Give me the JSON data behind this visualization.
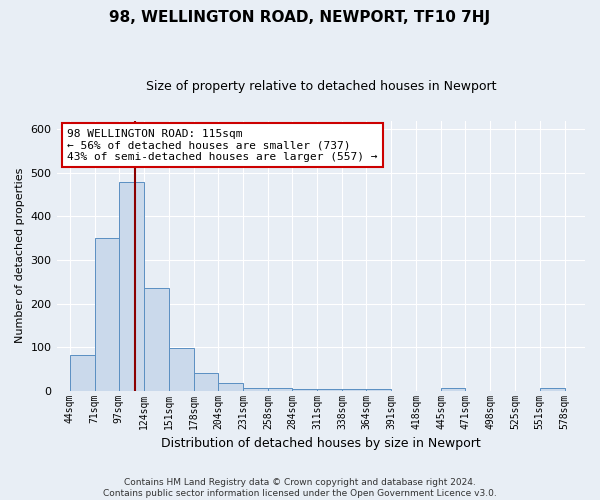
{
  "title": "98, WELLINGTON ROAD, NEWPORT, TF10 7HJ",
  "subtitle": "Size of property relative to detached houses in Newport",
  "xlabel": "Distribution of detached houses by size in Newport",
  "ylabel": "Number of detached properties",
  "bar_edges": [
    44,
    71,
    97,
    124,
    151,
    178,
    204,
    231,
    258,
    284,
    311,
    338,
    364,
    391,
    418,
    445,
    471,
    498,
    525,
    551,
    578
  ],
  "bar_heights": [
    82,
    350,
    480,
    235,
    97,
    40,
    17,
    7,
    7,
    4,
    4,
    4,
    4,
    0,
    0,
    5,
    0,
    0,
    0,
    5
  ],
  "bar_color": "#cad9eb",
  "bar_edge_color": "#5a8fc2",
  "property_line_x": 115,
  "property_line_color": "#8b0000",
  "annotation_text": "98 WELLINGTON ROAD: 115sqm\n← 56% of detached houses are smaller (737)\n43% of semi-detached houses are larger (557) →",
  "annotation_box_color": "white",
  "annotation_box_edge": "#cc0000",
  "ylim": [
    0,
    620
  ],
  "xlim_min": 30,
  "xlim_max": 600,
  "background_color": "#e8eef5",
  "grid_color": "#ffffff",
  "footer_line1": "Contains HM Land Registry data © Crown copyright and database right 2024.",
  "footer_line2": "Contains public sector information licensed under the Open Government Licence v3.0.",
  "title_fontsize": 11,
  "subtitle_fontsize": 9,
  "ylabel_fontsize": 8,
  "xlabel_fontsize": 9,
  "tick_fontsize": 7,
  "footer_fontsize": 6.5
}
